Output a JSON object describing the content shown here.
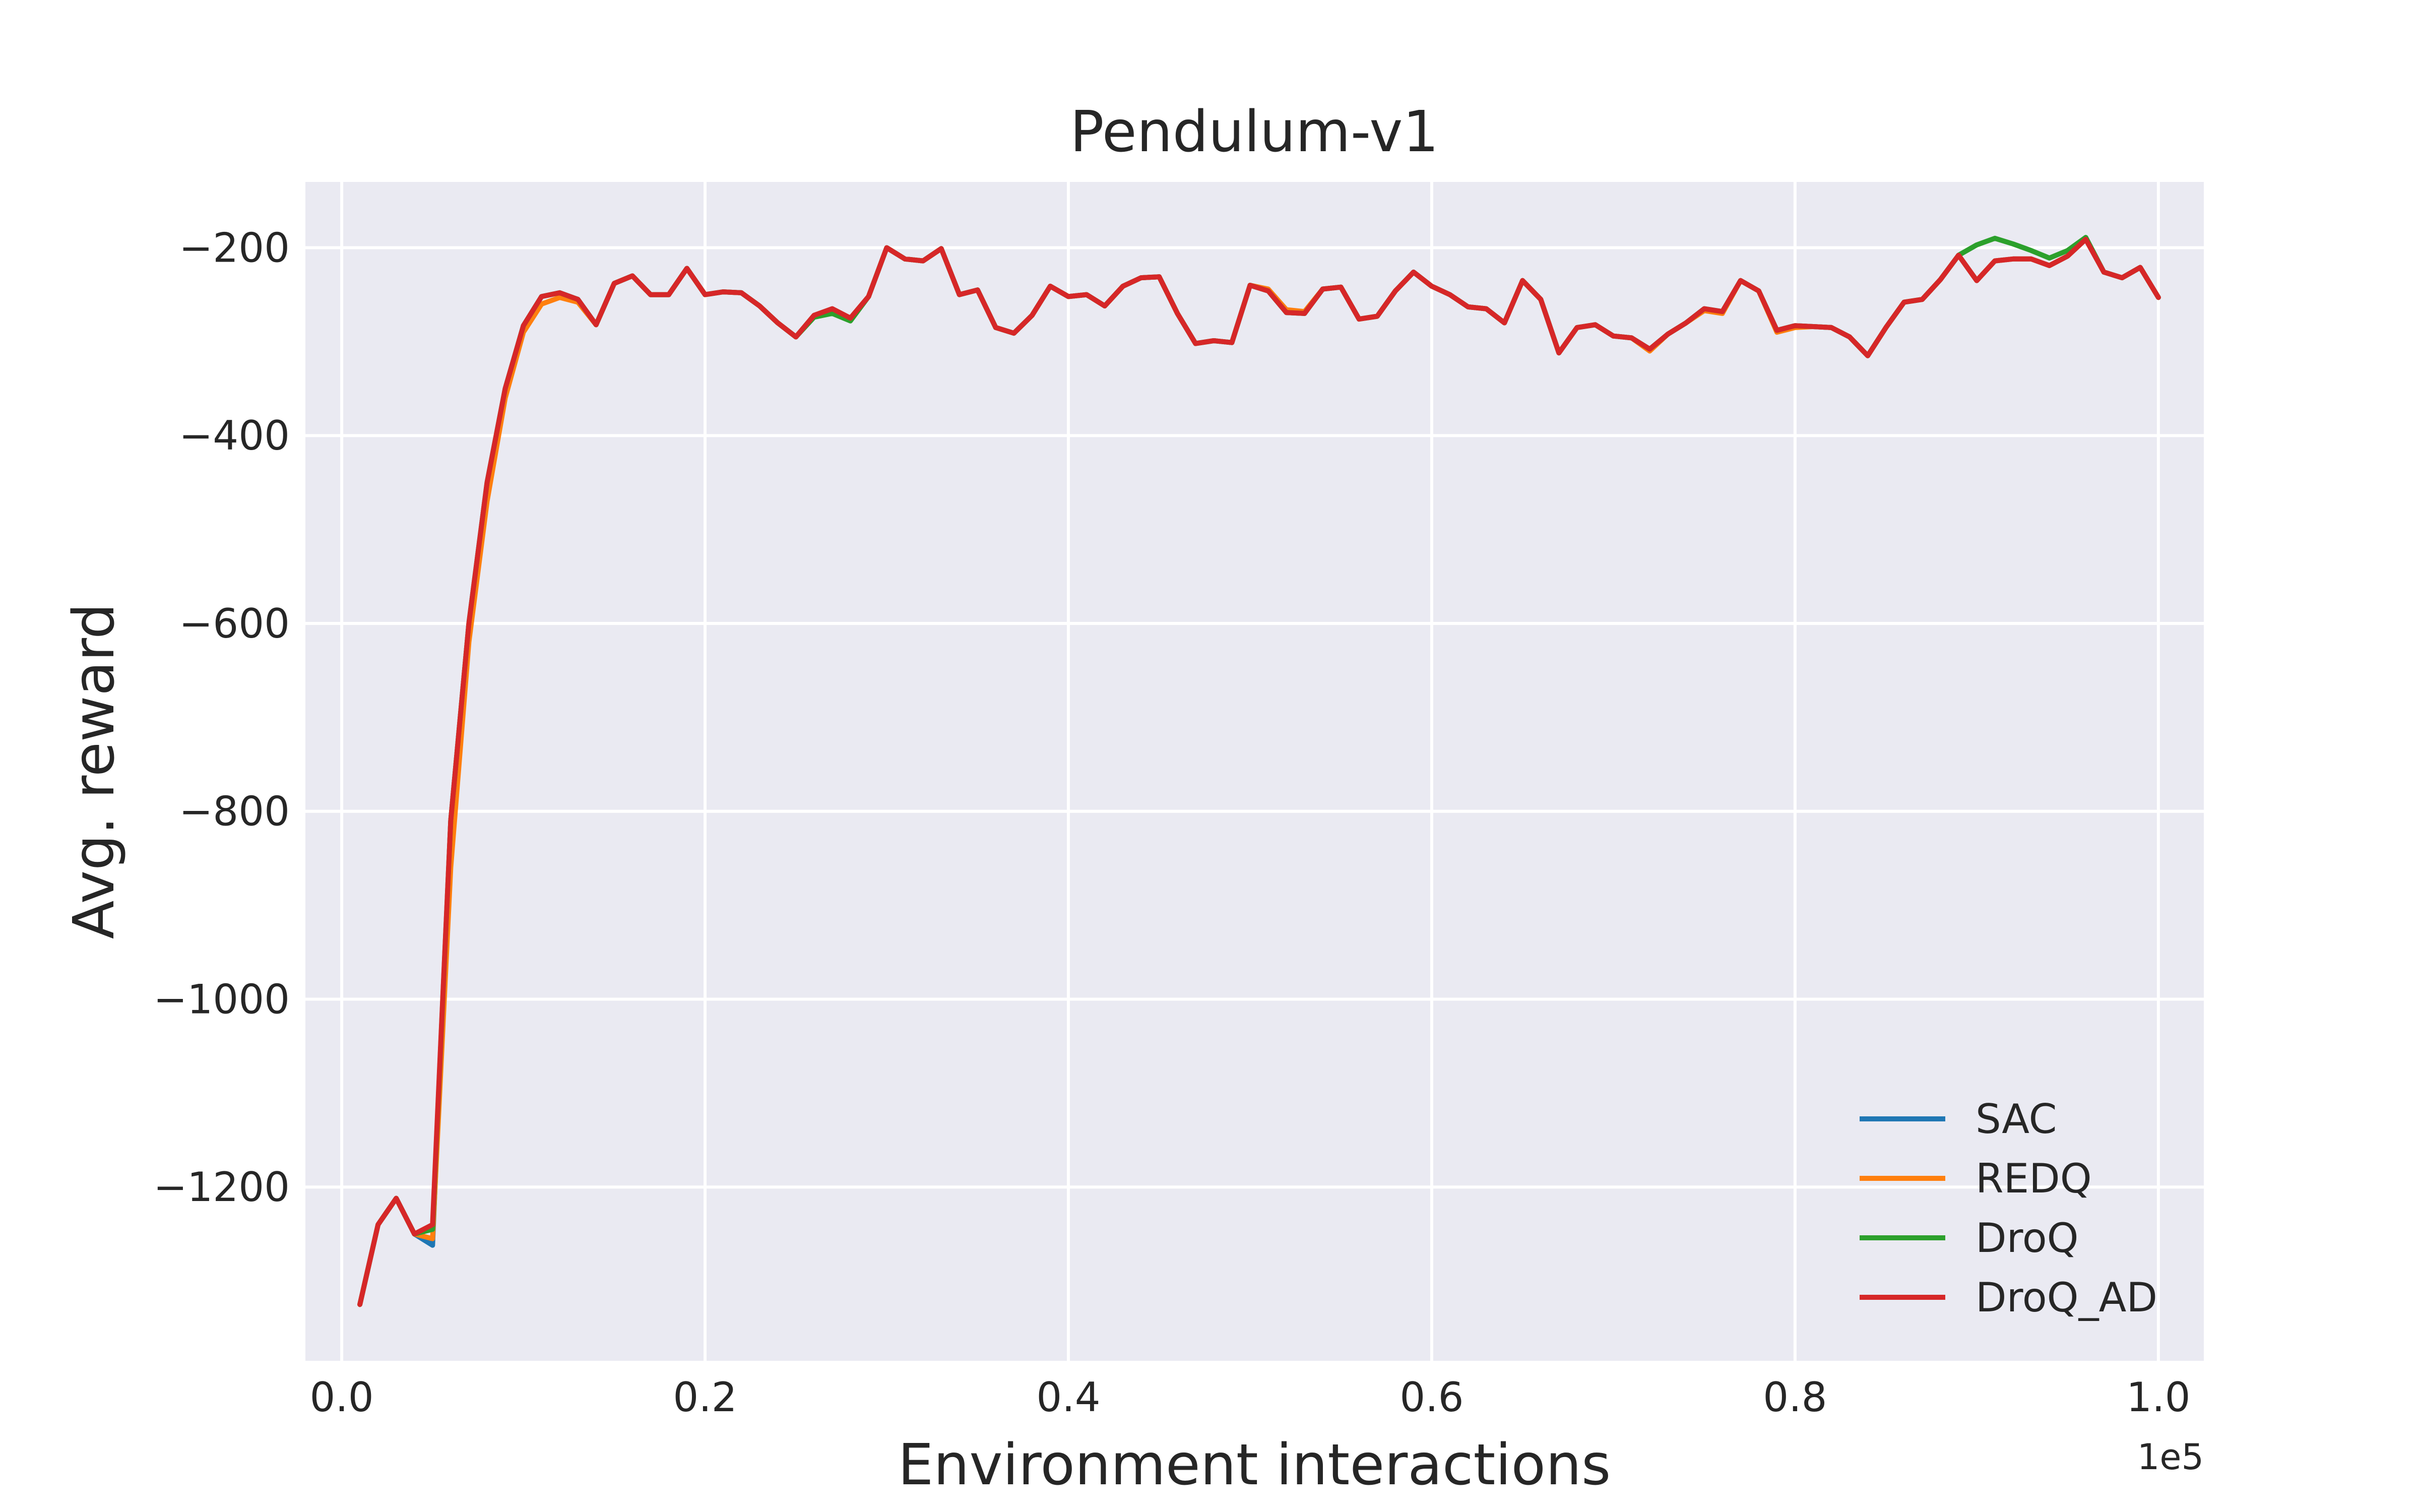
{
  "chart_data": {
    "type": "line",
    "title": "Pendulum-v1",
    "xlabel": "Environment interactions",
    "ylabel": "Avg. reward",
    "x_offset_label": "1e5",
    "xlim": [
      -0.02,
      1.025
    ],
    "ylim": [
      -1385,
      -130
    ],
    "xticks": [
      0.0,
      0.2,
      0.4,
      0.6,
      0.8,
      1.0
    ],
    "xtick_labels": [
      "0.0",
      "0.2",
      "0.4",
      "0.6",
      "0.8",
      "1.0"
    ],
    "yticks": [
      -1200,
      -1000,
      -800,
      -600,
      -400,
      -200
    ],
    "ytick_labels": [
      "−1200",
      "−1000",
      "−800",
      "−600",
      "−400",
      "−200"
    ],
    "grid": true,
    "legend_position": "lower-right",
    "x": [
      0.01,
      0.02,
      0.03,
      0.04,
      0.05,
      0.06,
      0.07,
      0.08,
      0.09,
      0.1,
      0.11,
      0.12,
      0.13,
      0.14,
      0.15,
      0.16,
      0.17,
      0.18,
      0.19,
      0.2,
      0.21,
      0.22,
      0.23,
      0.24,
      0.25,
      0.26,
      0.27,
      0.28,
      0.29,
      0.3,
      0.31,
      0.32,
      0.33,
      0.34,
      0.35,
      0.36,
      0.37,
      0.38,
      0.39,
      0.4,
      0.41,
      0.42,
      0.43,
      0.44,
      0.45,
      0.46,
      0.47,
      0.48,
      0.49,
      0.5,
      0.51,
      0.52,
      0.53,
      0.54,
      0.55,
      0.56,
      0.57,
      0.58,
      0.59,
      0.6,
      0.61,
      0.62,
      0.63,
      0.64,
      0.65,
      0.66,
      0.67,
      0.68,
      0.69,
      0.7,
      0.71,
      0.72,
      0.73,
      0.74,
      0.75,
      0.76,
      0.77,
      0.78,
      0.79,
      0.8,
      0.81,
      0.82,
      0.83,
      0.84,
      0.85,
      0.86,
      0.87,
      0.88,
      0.89,
      0.9,
      0.91,
      0.92,
      0.93,
      0.94,
      0.95,
      0.96,
      0.97,
      0.98,
      0.99,
      1.0
    ],
    "series": [
      {
        "name": "SAC",
        "color": "#1f77b4",
        "values": [
          -1325,
          -1240,
          -1212,
          -1250,
          -1262,
          -810,
          -600,
          -450,
          -350,
          -283,
          -252,
          -248,
          -255,
          -282,
          -238,
          -230,
          -250,
          -250,
          -222,
          -250,
          -247,
          -248,
          -262,
          -280,
          -295,
          -272,
          -265,
          -275,
          -252,
          -200,
          -212,
          -214,
          -201,
          -250,
          -245,
          -285,
          -291,
          -272,
          -241,
          -252,
          -250,
          -262,
          -241,
          -232,
          -231,
          -270,
          -302,
          -299,
          -301,
          -240,
          -246,
          -269,
          -270,
          -244,
          -242,
          -276,
          -273,
          -246,
          -226,
          -241,
          -250,
          -263,
          -265,
          -280,
          -235,
          -255,
          -312,
          -285,
          -282,
          -294,
          -296,
          -308,
          -292,
          -280,
          -265,
          -268,
          -235,
          -246,
          -288,
          -283,
          -284,
          -285,
          -295,
          -315,
          -285,
          -258,
          -255,
          -234,
          -208,
          -235,
          -214,
          -212,
          -212,
          -219,
          -209,
          -191,
          -226,
          -232,
          -221,
          -253
        ]
      },
      {
        "name": "REDQ",
        "color": "#ff7f0e",
        "values": [
          -1325,
          -1240,
          -1212,
          -1250,
          -1255,
          -860,
          -620,
          -470,
          -360,
          -290,
          -260,
          -253,
          -258,
          -282,
          -238,
          -230,
          -250,
          -250,
          -222,
          -250,
          -247,
          -248,
          -262,
          -280,
          -295,
          -272,
          -265,
          -275,
          -252,
          -200,
          -212,
          -214,
          -201,
          -250,
          -245,
          -285,
          -291,
          -272,
          -241,
          -252,
          -250,
          -262,
          -241,
          -232,
          -231,
          -270,
          -302,
          -299,
          -301,
          -240,
          -244,
          -266,
          -268,
          -244,
          -242,
          -276,
          -273,
          -246,
          -226,
          -241,
          -250,
          -263,
          -265,
          -280,
          -235,
          -255,
          -312,
          -285,
          -282,
          -294,
          -296,
          -310,
          -292,
          -280,
          -267,
          -270,
          -235,
          -246,
          -290,
          -285,
          -284,
          -285,
          -295,
          -315,
          -285,
          -258,
          -255,
          -234,
          -208,
          -235,
          -214,
          -212,
          -212,
          -219,
          -209,
          -191,
          -226,
          -232,
          -221,
          -253
        ]
      },
      {
        "name": "DroQ",
        "color": "#2ca02c",
        "values": [
          -1325,
          -1240,
          -1212,
          -1250,
          -1245,
          -810,
          -600,
          -450,
          -350,
          -283,
          -252,
          -248,
          -255,
          -282,
          -238,
          -230,
          -250,
          -250,
          -222,
          -250,
          -247,
          -248,
          -262,
          -280,
          -295,
          -274,
          -270,
          -278,
          -252,
          -200,
          -212,
          -214,
          -201,
          -250,
          -245,
          -285,
          -291,
          -272,
          -241,
          -252,
          -250,
          -262,
          -241,
          -232,
          -231,
          -270,
          -302,
          -299,
          -301,
          -240,
          -246,
          -269,
          -270,
          -244,
          -242,
          -276,
          -273,
          -246,
          -226,
          -241,
          -250,
          -263,
          -265,
          -280,
          -235,
          -255,
          -312,
          -285,
          -282,
          -294,
          -296,
          -308,
          -292,
          -280,
          -265,
          -268,
          -235,
          -246,
          -288,
          -283,
          -284,
          -285,
          -295,
          -315,
          -285,
          -258,
          -255,
          -234,
          -208,
          -197,
          -190,
          -196,
          -203,
          -211,
          -203,
          -189,
          -226,
          -232,
          -221,
          -253
        ]
      },
      {
        "name": "DroQ_AD",
        "color": "#d62728",
        "values": [
          -1325,
          -1240,
          -1212,
          -1250,
          -1240,
          -810,
          -600,
          -450,
          -350,
          -283,
          -252,
          -248,
          -255,
          -282,
          -238,
          -230,
          -250,
          -250,
          -222,
          -250,
          -247,
          -248,
          -262,
          -280,
          -295,
          -272,
          -265,
          -275,
          -252,
          -200,
          -212,
          -214,
          -201,
          -250,
          -245,
          -285,
          -291,
          -272,
          -241,
          -252,
          -250,
          -262,
          -241,
          -232,
          -231,
          -270,
          -302,
          -299,
          -301,
          -240,
          -246,
          -269,
          -270,
          -244,
          -242,
          -276,
          -273,
          -246,
          -226,
          -241,
          -250,
          -263,
          -265,
          -280,
          -235,
          -255,
          -312,
          -285,
          -282,
          -294,
          -296,
          -308,
          -292,
          -280,
          -265,
          -268,
          -235,
          -246,
          -288,
          -283,
          -284,
          -285,
          -295,
          -315,
          -285,
          -258,
          -255,
          -234,
          -208,
          -235,
          -214,
          -212,
          -212,
          -219,
          -209,
          -191,
          -226,
          -232,
          -221,
          -253
        ]
      }
    ]
  }
}
